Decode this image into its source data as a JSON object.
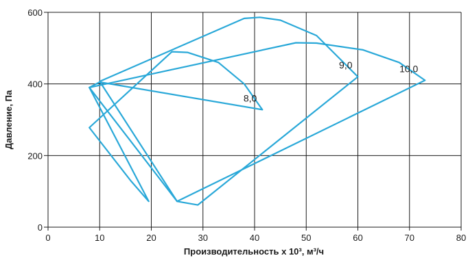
{
  "chart_data": {
    "type": "line",
    "xlabel": "Производительность x 10³, м³/ч",
    "ylabel": "Давление, Па",
    "xlim": [
      0,
      80
    ],
    "ylim": [
      0,
      600
    ],
    "x_ticks": [
      0,
      10,
      20,
      30,
      40,
      50,
      60,
      70,
      80
    ],
    "y_ticks": [
      0,
      200,
      400,
      600
    ],
    "grid": true,
    "line_color": "#29a8d8",
    "series": [
      {
        "name": "8,0",
        "points": [
          [
            8,
            278
          ],
          [
            24,
            490
          ],
          [
            27,
            488
          ],
          [
            33,
            460
          ],
          [
            38,
            400
          ],
          [
            41.5,
            328
          ],
          [
            10,
            405
          ],
          [
            8,
            390
          ],
          [
            19.5,
            72
          ],
          [
            16,
            130
          ],
          [
            8,
            278
          ]
        ]
      },
      {
        "name": "9,0",
        "points": [
          [
            10,
            407
          ],
          [
            38,
            583
          ],
          [
            41,
            586
          ],
          [
            45,
            578
          ],
          [
            52,
            535
          ],
          [
            60,
            420
          ],
          [
            29,
            62
          ],
          [
            25,
            72
          ],
          [
            10,
            407
          ]
        ]
      },
      {
        "name": "10,0",
        "points": [
          [
            8,
            390
          ],
          [
            48,
            515
          ],
          [
            52,
            514
          ],
          [
            61,
            495
          ],
          [
            68,
            460
          ],
          [
            73,
            410
          ],
          [
            25,
            72
          ],
          [
            8,
            390
          ]
        ]
      }
    ]
  }
}
